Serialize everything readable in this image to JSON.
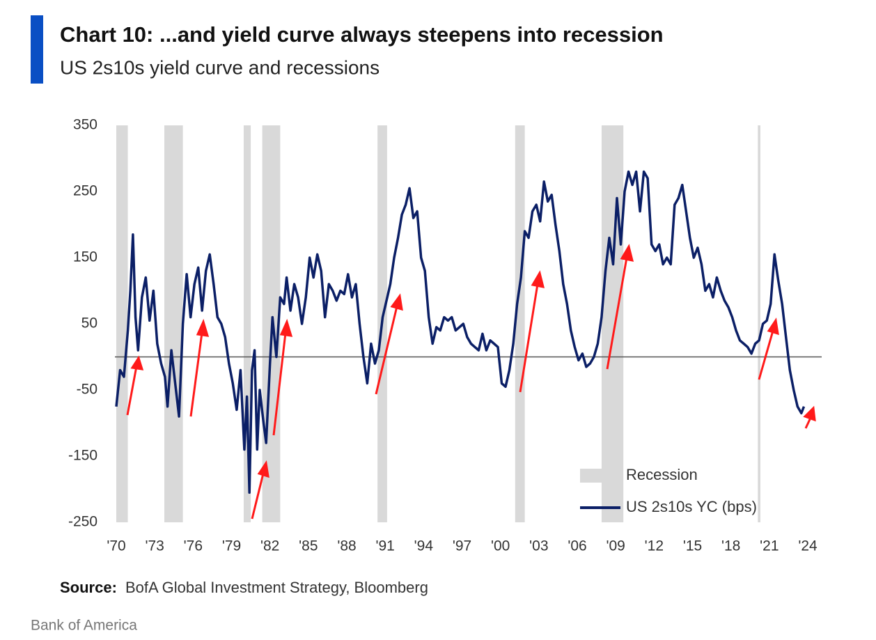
{
  "chart_data": {
    "type": "line",
    "title": "Chart 10: ...and yield curve always steepens into recession",
    "subtitle": "US 2s10s yield curve and recessions",
    "source_label": "Source:",
    "source": "BofA Global Investment Strategy, Bloomberg",
    "footer": "Bank of America",
    "legend_position": "lower right",
    "recession_label": "Recession",
    "recession_color": "#d9d9d9",
    "recessions": [
      [
        1970.0,
        1970.9
      ],
      [
        1973.75,
        1975.2
      ],
      [
        1979.95,
        1980.5
      ],
      [
        1981.4,
        1982.8
      ],
      [
        1990.4,
        1991.15
      ],
      [
        2001.15,
        2001.9
      ],
      [
        2007.9,
        2009.6
      ],
      [
        2020.1,
        2020.3
      ]
    ],
    "reference_line": 0,
    "xlim": [
      1970,
      2024
    ],
    "ylim": [
      -250,
      350
    ],
    "yticks": [
      350,
      250,
      150,
      50,
      -50,
      -150,
      -250
    ],
    "xticks": [
      {
        "value": 1970,
        "label": "'70"
      },
      {
        "value": 1973,
        "label": "'73"
      },
      {
        "value": 1976,
        "label": "'76"
      },
      {
        "value": 1979,
        "label": "'79"
      },
      {
        "value": 1982,
        "label": "'82"
      },
      {
        "value": 1985,
        "label": "'85"
      },
      {
        "value": 1988,
        "label": "'88"
      },
      {
        "value": 1991,
        "label": "'91"
      },
      {
        "value": 1994,
        "label": "'94"
      },
      {
        "value": 1997,
        "label": "'97"
      },
      {
        "value": 2000,
        "label": "'00"
      },
      {
        "value": 2003,
        "label": "'03"
      },
      {
        "value": 2006,
        "label": "'06"
      },
      {
        "value": 2009,
        "label": "'09"
      },
      {
        "value": 2012,
        "label": "'12"
      },
      {
        "value": 2015,
        "label": "'15"
      },
      {
        "value": 2018,
        "label": "'18"
      },
      {
        "value": 2021,
        "label": "'21"
      },
      {
        "value": 2024,
        "label": "'24"
      }
    ],
    "series": [
      {
        "name": "US 2s10s YC (bps)",
        "color": "#0b1f66",
        "x": [
          1970.0,
          1970.3,
          1970.6,
          1970.9,
          1971.1,
          1971.3,
          1971.5,
          1971.7,
          1972.0,
          1972.3,
          1972.6,
          1972.9,
          1973.2,
          1973.5,
          1973.8,
          1974.0,
          1974.3,
          1974.6,
          1974.9,
          1975.2,
          1975.5,
          1975.8,
          1976.1,
          1976.4,
          1976.7,
          1977.0,
          1977.3,
          1977.6,
          1977.9,
          1978.2,
          1978.5,
          1978.8,
          1979.1,
          1979.4,
          1979.7,
          1980.0,
          1980.2,
          1980.4,
          1980.6,
          1980.8,
          1981.0,
          1981.2,
          1981.5,
          1981.7,
          1982.0,
          1982.2,
          1982.5,
          1982.8,
          1983.1,
          1983.3,
          1983.6,
          1983.9,
          1984.2,
          1984.5,
          1984.8,
          1985.1,
          1985.4,
          1985.7,
          1986.0,
          1986.3,
          1986.6,
          1986.9,
          1987.2,
          1987.5,
          1987.8,
          1988.1,
          1988.4,
          1988.7,
          1989.0,
          1989.3,
          1989.6,
          1989.9,
          1990.2,
          1990.5,
          1990.8,
          1991.1,
          1991.4,
          1991.7,
          1992.0,
          1992.3,
          1992.6,
          1992.9,
          1993.2,
          1993.5,
          1993.8,
          1994.1,
          1994.4,
          1994.7,
          1995.0,
          1995.3,
          1995.6,
          1995.9,
          1996.2,
          1996.5,
          1996.8,
          1997.1,
          1997.4,
          1997.7,
          1998.0,
          1998.3,
          1998.6,
          1998.9,
          1999.2,
          1999.5,
          1999.8,
          2000.1,
          2000.4,
          2000.7,
          2001.0,
          2001.3,
          2001.6,
          2001.9,
          2002.2,
          2002.5,
          2002.8,
          2003.1,
          2003.4,
          2003.7,
          2004.0,
          2004.3,
          2004.6,
          2004.9,
          2005.2,
          2005.5,
          2005.8,
          2006.1,
          2006.4,
          2006.7,
          2007.0,
          2007.3,
          2007.6,
          2007.9,
          2008.2,
          2008.5,
          2008.8,
          2009.1,
          2009.4,
          2009.7,
          2010.0,
          2010.3,
          2010.6,
          2010.9,
          2011.2,
          2011.5,
          2011.8,
          2012.1,
          2012.4,
          2012.7,
          2013.0,
          2013.3,
          2013.6,
          2013.9,
          2014.2,
          2014.5,
          2014.8,
          2015.1,
          2015.4,
          2015.7,
          2016.0,
          2016.3,
          2016.6,
          2016.9,
          2017.2,
          2017.5,
          2017.8,
          2018.1,
          2018.4,
          2018.7,
          2019.0,
          2019.3,
          2019.6,
          2019.9,
          2020.2,
          2020.5,
          2020.8,
          2021.1,
          2021.4,
          2021.7,
          2022.0,
          2022.3,
          2022.6,
          2022.9,
          2023.2,
          2023.5,
          2023.7
        ],
        "values": [
          -75,
          -20,
          -30,
          40,
          100,
          185,
          60,
          10,
          90,
          120,
          55,
          100,
          20,
          -10,
          -30,
          -75,
          10,
          -40,
          -90,
          50,
          125,
          60,
          110,
          135,
          70,
          130,
          155,
          110,
          60,
          50,
          30,
          -10,
          -40,
          -80,
          -20,
          -140,
          -60,
          -205,
          -20,
          10,
          -140,
          -50,
          -100,
          -130,
          -10,
          60,
          0,
          90,
          80,
          120,
          70,
          110,
          90,
          50,
          90,
          150,
          120,
          155,
          130,
          60,
          110,
          100,
          85,
          100,
          95,
          125,
          90,
          110,
          50,
          0,
          -40,
          20,
          -10,
          10,
          60,
          85,
          110,
          150,
          180,
          215,
          230,
          255,
          210,
          220,
          150,
          130,
          60,
          20,
          45,
          40,
          60,
          55,
          60,
          40,
          45,
          50,
          30,
          20,
          15,
          10,
          35,
          10,
          25,
          20,
          15,
          -40,
          -45,
          -20,
          20,
          80,
          120,
          190,
          180,
          220,
          230,
          205,
          265,
          235,
          245,
          200,
          160,
          110,
          80,
          40,
          15,
          -5,
          5,
          -15,
          -10,
          0,
          20,
          60,
          130,
          180,
          140,
          240,
          170,
          250,
          280,
          260,
          280,
          220,
          280,
          270,
          170,
          160,
          170,
          140,
          150,
          140,
          230,
          240,
          260,
          220,
          180,
          150,
          165,
          140,
          100,
          110,
          90,
          120,
          100,
          85,
          75,
          60,
          40,
          25,
          20,
          15,
          5,
          20,
          25,
          50,
          55,
          80,
          155,
          115,
          80,
          30,
          -20,
          -50,
          -75,
          -85,
          -75
        ]
      }
    ]
  }
}
